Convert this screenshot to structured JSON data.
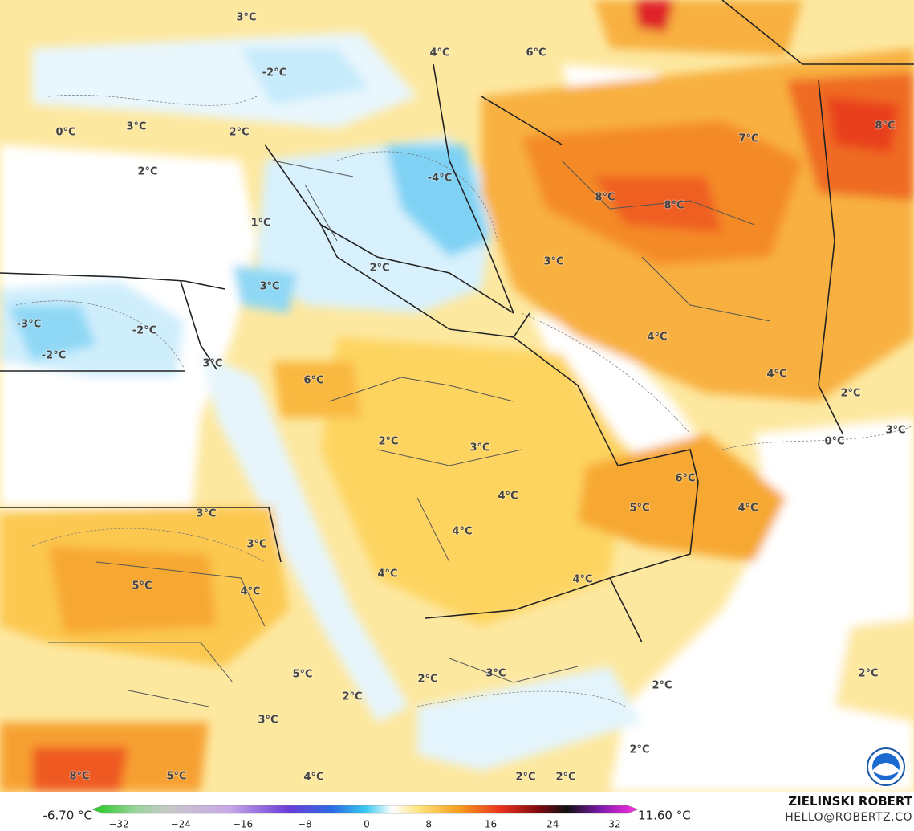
{
  "map": {
    "labels": [
      "3°C",
      "4°C",
      "6°C",
      "-2°C",
      "3°C",
      "2°C",
      "0°C",
      "7°C",
      "8°C",
      "2°C",
      "-4°C",
      "8°C",
      "8°C",
      "1°C",
      "2°C",
      "3°C",
      "3°C",
      "-3°C",
      "-2°C",
      "-2°C",
      "4°C",
      "3°C",
      "6°C",
      "4°C",
      "2°C",
      "2°C",
      "3°C",
      "0°C",
      "3°C",
      "6°C",
      "4°C",
      "5°C",
      "4°C",
      "3°C",
      "4°C",
      "3°C",
      "5°C",
      "4°C",
      "4°C",
      "4°C",
      "5°C",
      "3°C",
      "2°C",
      "2°C",
      "2°C",
      "2°C",
      "3°C",
      "2°C",
      "8°C",
      "5°C",
      "4°C",
      "2°C",
      "2°C"
    ]
  },
  "colorbar": {
    "min_label": "-6.70 °C",
    "max_label": "11.60 °C",
    "ticks": [
      "−32",
      "−24",
      "−16",
      "−8",
      "0",
      "8",
      "16",
      "24",
      "32"
    ]
  },
  "credit": {
    "author": "ZIELINSKI ROBERT",
    "contact": "HELLO@ROBERTZ.CO"
  }
}
